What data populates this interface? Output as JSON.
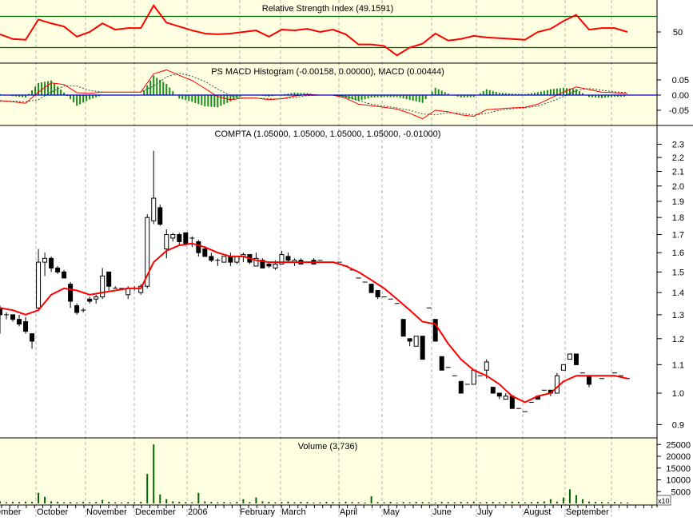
{
  "colors": {
    "panel_bg": "#ffffe1",
    "price_bg": "#ffffff",
    "ma_line": "#ff0000",
    "rsi_line": "#ff0000",
    "rsi_levels": "#006400",
    "macd_line": "#ff0000",
    "signal_line": "#2f4f4f",
    "histogram": "#1a8a1a",
    "zero_line": "#0000cc",
    "volume": "#006400",
    "grid": "#b4b4b4"
  },
  "chart_data": [
    {
      "type": "line",
      "title": "Relative Strength Index (49.1591)",
      "levels": [
        70,
        30
      ],
      "ticks": [
        "50"
      ],
      "ylim": [
        10,
        91
      ],
      "values": [
        47,
        41,
        40,
        66,
        61,
        57,
        44,
        50,
        61,
        53,
        55,
        55,
        84,
        62,
        57,
        52,
        48,
        47,
        48,
        50,
        52,
        44,
        53,
        52,
        54,
        50,
        53,
        47,
        34,
        34,
        32,
        20,
        30,
        35,
        48,
        39,
        41,
        45,
        43,
        42,
        41,
        40,
        50,
        54,
        64,
        72,
        53,
        55,
        55,
        50
      ]
    },
    {
      "type": "bar",
      "title": "PS MACD Histogram (-0.00158, 0.00000), MACD (0.00444)",
      "ticks": [
        "0.05",
        "0.00",
        "-0.05"
      ],
      "ylim": [
        -0.1,
        0.1
      ],
      "macd": [
        -0.018,
        -0.022,
        -0.027,
        0.01,
        0.04,
        0.035,
        0.008,
        0.006,
        0.01,
        0.01,
        0.01,
        0.01,
        0.07,
        0.083,
        0.065,
        0.048,
        0.022,
        -0.005,
        -0.015,
        -0.01,
        -0.01,
        -0.015,
        -0.012,
        -0.003,
        0.002,
        0.0,
        0.0,
        -0.01,
        -0.03,
        -0.035,
        -0.04,
        -0.046,
        -0.06,
        -0.078,
        -0.05,
        -0.055,
        -0.065,
        -0.07,
        -0.048,
        -0.045,
        -0.042,
        -0.04,
        -0.03,
        -0.01,
        0.01,
        0.027,
        0.018,
        0.01,
        0.008,
        0.005
      ],
      "signal": [
        -0.02,
        -0.02,
        -0.022,
        -0.015,
        0.01,
        0.03,
        0.03,
        0.015,
        0.01,
        0.01,
        0.01,
        0.01,
        0.03,
        0.06,
        0.072,
        0.062,
        0.045,
        0.02,
        -0.002,
        -0.01,
        -0.01,
        -0.012,
        -0.013,
        -0.008,
        -0.002,
        0.0,
        0.0,
        -0.004,
        -0.018,
        -0.03,
        -0.036,
        -0.042,
        -0.05,
        -0.062,
        -0.065,
        -0.058,
        -0.06,
        -0.066,
        -0.06,
        -0.05,
        -0.045,
        -0.042,
        -0.036,
        -0.022,
        -0.005,
        0.015,
        0.022,
        0.016,
        0.011,
        0.008
      ]
    },
    {
      "type": "candlestick",
      "title": "COMPTA (1.05000, 1.05000, 1.05000, 1.05000, -0.01000)",
      "scale": "log",
      "ylim": [
        0.88,
        2.4
      ],
      "ticks": [
        "2.3",
        "2.2",
        "2.1",
        "2.0",
        "1.9",
        "1.8",
        "1.7",
        "1.6",
        "1.5",
        "1.4",
        "1.3",
        "1.2",
        "1.1",
        "1.0",
        "0.9"
      ],
      "ohlc": [
        [
          1.33,
          1.34,
          1.22,
          1.3
        ],
        [
          1.3,
          1.31,
          1.28,
          1.3
        ],
        [
          1.3,
          1.3,
          1.27,
          1.28
        ],
        [
          1.28,
          1.3,
          1.25,
          1.26
        ],
        [
          1.27,
          1.29,
          1.22,
          1.23
        ],
        [
          1.22,
          1.22,
          1.16,
          1.19
        ],
        [
          1.33,
          1.62,
          1.32,
          1.55
        ],
        [
          1.55,
          1.6,
          1.48,
          1.57
        ],
        [
          1.57,
          1.58,
          1.5,
          1.52
        ],
        [
          1.52,
          1.53,
          1.49,
          1.5
        ],
        [
          1.5,
          1.51,
          1.47,
          1.47
        ],
        [
          1.44,
          1.45,
          1.33,
          1.36
        ],
        [
          1.34,
          1.35,
          1.3,
          1.31
        ],
        [
          1.32,
          1.33,
          1.31,
          1.32
        ],
        [
          1.37,
          1.38,
          1.35,
          1.36
        ],
        [
          1.37,
          1.39,
          1.35,
          1.38
        ],
        [
          1.38,
          1.52,
          1.37,
          1.48
        ],
        [
          1.5,
          1.5,
          1.41,
          1.43
        ],
        [
          1.42,
          1.43,
          1.42,
          1.42
        ],
        [
          1.42,
          1.42,
          1.42,
          1.42
        ],
        [
          1.39,
          1.43,
          1.37,
          1.42
        ],
        [
          1.42,
          1.43,
          1.41,
          1.42
        ],
        [
          1.4,
          1.44,
          1.39,
          1.43
        ],
        [
          1.43,
          1.82,
          1.42,
          1.8
        ],
        [
          1.78,
          2.25,
          1.76,
          1.92
        ],
        [
          1.86,
          1.88,
          1.75,
          1.76
        ],
        [
          1.62,
          1.73,
          1.57,
          1.7
        ],
        [
          1.68,
          1.71,
          1.66,
          1.7
        ],
        [
          1.7,
          1.71,
          1.64,
          1.66
        ],
        [
          1.71,
          1.71,
          1.64,
          1.65
        ],
        [
          1.68,
          1.69,
          1.63,
          1.68
        ],
        [
          1.66,
          1.67,
          1.58,
          1.6
        ],
        [
          1.62,
          1.63,
          1.58,
          1.58
        ],
        [
          1.58,
          1.6,
          1.55,
          1.56
        ],
        [
          1.56,
          1.57,
          1.53,
          1.56
        ],
        [
          1.55,
          1.58,
          1.55,
          1.58
        ],
        [
          1.58,
          1.6,
          1.53,
          1.55
        ],
        [
          1.55,
          1.58,
          1.54,
          1.58
        ],
        [
          1.58,
          1.6,
          1.55,
          1.59
        ],
        [
          1.59,
          1.59,
          1.54,
          1.55
        ],
        [
          1.53,
          1.6,
          1.53,
          1.57
        ],
        [
          1.56,
          1.57,
          1.52,
          1.52
        ],
        [
          1.54,
          1.55,
          1.52,
          1.53
        ],
        [
          1.52,
          1.56,
          1.51,
          1.54
        ],
        [
          1.54,
          1.61,
          1.54,
          1.59
        ],
        [
          1.58,
          1.6,
          1.55,
          1.56
        ],
        [
          1.55,
          1.57,
          1.53,
          1.56
        ],
        [
          1.56,
          1.57,
          1.54,
          1.54
        ],
        [
          1.55,
          1.55,
          1.55,
          1.55
        ],
        [
          1.56,
          1.57,
          1.54,
          1.54
        ],
        [
          1.56,
          1.56,
          1.56,
          1.56
        ],
        [
          1.55,
          1.55,
          1.55,
          1.55
        ],
        [
          1.55,
          1.55,
          1.55,
          1.55
        ],
        [
          1.55,
          1.55,
          1.55,
          1.55
        ],
        [
          1.53,
          1.53,
          1.53,
          1.53
        ],
        [
          1.51,
          1.51,
          1.51,
          1.51
        ],
        [
          1.47,
          1.47,
          1.47,
          1.47
        ],
        [
          1.45,
          1.45,
          1.45,
          1.45
        ],
        [
          1.44,
          1.44,
          1.4,
          1.4
        ],
        [
          1.41,
          1.41,
          1.37,
          1.38
        ],
        [
          1.38,
          1.38,
          1.38,
          1.38
        ],
        [
          1.37,
          1.37,
          1.37,
          1.37
        ],
        [
          1.35,
          1.35,
          1.35,
          1.35
        ],
        [
          1.28,
          1.28,
          1.21,
          1.21
        ],
        [
          1.2,
          1.2,
          1.17,
          1.19
        ],
        [
          1.17,
          1.21,
          1.17,
          1.21
        ],
        [
          1.21,
          1.21,
          1.12,
          1.12
        ],
        [
          1.33,
          1.33,
          1.33,
          1.33
        ],
        [
          1.28,
          1.28,
          1.19,
          1.19
        ],
        [
          1.13,
          1.13,
          1.08,
          1.08
        ],
        [
          1.09,
          1.09,
          1.09,
          1.09
        ],
        [
          1.06,
          1.06,
          1.06,
          1.06
        ],
        [
          1.04,
          1.04,
          1.0,
          1.0
        ],
        [
          1.03,
          1.03,
          1.03,
          1.03
        ],
        [
          1.03,
          1.08,
          1.03,
          1.08
        ],
        [
          1.06,
          1.06,
          1.06,
          1.06
        ],
        [
          1.08,
          1.12,
          1.05,
          1.11
        ],
        [
          1.02,
          1.02,
          1.0,
          1.0
        ],
        [
          1.0,
          1.0,
          0.98,
          0.99
        ],
        [
          0.98,
          1.0,
          0.98,
          0.99
        ],
        [
          0.99,
          0.99,
          0.95,
          0.95
        ],
        [
          0.95,
          0.95,
          0.95,
          0.95
        ],
        [
          0.94,
          0.94,
          0.94,
          0.94
        ],
        [
          0.97,
          0.97,
          0.97,
          0.97
        ],
        [
          0.99,
          0.99,
          0.98,
          0.98
        ],
        [
          1.01,
          1.01,
          1.01,
          1.01
        ],
        [
          1.01,
          1.01,
          0.99,
          1.0
        ],
        [
          1.0,
          1.07,
          1.0,
          1.06
        ],
        [
          1.08,
          1.1,
          1.08,
          1.1
        ],
        [
          1.12,
          1.14,
          1.12,
          1.14
        ],
        [
          1.14,
          1.14,
          1.1,
          1.1
        ],
        [
          1.07,
          1.07,
          1.07,
          1.07
        ],
        [
          1.06,
          1.06,
          1.02,
          1.03
        ],
        [
          1.06,
          1.06,
          1.06,
          1.06
        ],
        [
          1.05,
          1.05,
          1.05,
          1.05
        ],
        [
          1.06,
          1.06,
          1.06,
          1.06
        ],
        [
          1.07,
          1.07,
          1.07,
          1.07
        ],
        [
          1.06,
          1.06,
          1.06,
          1.06
        ],
        [
          1.05,
          1.05,
          1.05,
          1.05
        ]
      ],
      "moving_average": [
        1.33,
        1.32,
        1.3,
        1.32,
        1.39,
        1.42,
        1.41,
        1.39,
        1.4,
        1.41,
        1.42,
        1.42,
        1.55,
        1.61,
        1.64,
        1.65,
        1.63,
        1.6,
        1.58,
        1.58,
        1.56,
        1.55,
        1.55,
        1.55,
        1.55,
        1.55,
        1.55,
        1.53,
        1.5,
        1.46,
        1.42,
        1.37,
        1.32,
        1.27,
        1.26,
        1.18,
        1.12,
        1.08,
        1.06,
        1.03,
        0.99,
        0.97,
        0.99,
        1.0,
        1.04,
        1.06,
        1.06,
        1.06,
        1.06,
        1.05
      ]
    },
    {
      "type": "bar",
      "title": "Volume (3,736)",
      "ticks": [
        "25000",
        "20000",
        "15000",
        "10000",
        "5000"
      ],
      "multiplier_label": "x10",
      "ylim": [
        0,
        27000
      ],
      "values": [
        900,
        500,
        700,
        600,
        800,
        700,
        4500,
        2800,
        900,
        700,
        500,
        600,
        400,
        700,
        500,
        600,
        1500,
        700,
        500,
        400,
        600,
        500,
        700,
        12500,
        25000,
        3800,
        1800,
        900,
        700,
        600,
        500,
        4500,
        900,
        700,
        500,
        600,
        400,
        700,
        1800,
        600,
        2500,
        900,
        700,
        500,
        600,
        800,
        500,
        700,
        600,
        400,
        500,
        700,
        600,
        500,
        800,
        600,
        500,
        400,
        3000,
        600,
        500,
        700,
        400,
        600,
        500,
        700,
        600,
        500,
        400,
        700,
        600,
        500,
        700,
        600,
        800,
        500,
        600,
        700,
        500,
        600,
        800,
        700,
        500,
        600,
        700,
        900,
        1800,
        800,
        2500,
        6000,
        3500,
        1800,
        800,
        700,
        600,
        500,
        600,
        500,
        400
      ],
      "x_tick_labels": [
        "ptember",
        "October",
        "November",
        "December",
        "2006",
        "February",
        "March",
        "April",
        "May",
        "June",
        "July",
        "August",
        "September"
      ]
    }
  ]
}
